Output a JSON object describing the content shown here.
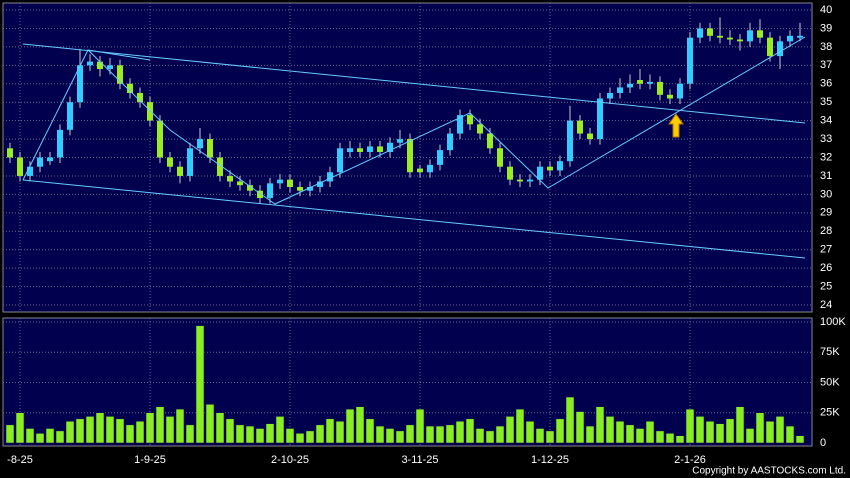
{
  "chart_data": [
    {
      "type": "candlestick",
      "up_color": "#33ccff",
      "down_color": "#99ee22",
      "wick_color": "#c8c8c8",
      "ylim": [
        24,
        40
      ],
      "yticks": [
        24,
        25,
        26,
        27,
        28,
        29,
        30,
        31,
        32,
        33,
        34,
        35,
        36,
        37,
        38,
        39,
        40
      ],
      "grid": true,
      "candles": [
        [
          32.5,
          32.8,
          31.7,
          32.0
        ],
        [
          32.0,
          32.3,
          30.7,
          31.0
        ],
        [
          31.0,
          31.8,
          30.7,
          31.5
        ],
        [
          31.5,
          32.3,
          31.2,
          32.0
        ],
        [
          31.8,
          32.3,
          31.6,
          32.0
        ],
        [
          32.0,
          33.8,
          31.7,
          33.5
        ],
        [
          33.5,
          35.3,
          33.2,
          35.0
        ],
        [
          35.0,
          37.9,
          34.7,
          37.0
        ],
        [
          37.0,
          37.6,
          36.7,
          37.2
        ],
        [
          37.2,
          37.5,
          36.4,
          36.8
        ],
        [
          36.8,
          37.4,
          36.5,
          37.0
        ],
        [
          37.0,
          37.3,
          35.7,
          36.0
        ],
        [
          36.0,
          36.3,
          35.2,
          35.5
        ],
        [
          35.5,
          35.8,
          34.7,
          35.0
        ],
        [
          35.0,
          35.3,
          33.7,
          34.0
        ],
        [
          34.0,
          34.3,
          31.7,
          32.0
        ],
        [
          32.0,
          32.3,
          31.2,
          31.5
        ],
        [
          31.5,
          31.8,
          30.6,
          31.0
        ],
        [
          31.0,
          32.8,
          30.7,
          32.5
        ],
        [
          32.5,
          33.6,
          32.2,
          33.0
        ],
        [
          33.0,
          33.3,
          31.7,
          32.0
        ],
        [
          32.0,
          32.3,
          30.7,
          31.0
        ],
        [
          31.0,
          31.3,
          30.4,
          30.7
        ],
        [
          30.7,
          31.0,
          30.2,
          30.5
        ],
        [
          30.5,
          30.8,
          29.9,
          30.2
        ],
        [
          30.2,
          30.5,
          29.5,
          29.8
        ],
        [
          29.8,
          30.9,
          29.5,
          30.6
        ],
        [
          30.6,
          31.1,
          30.3,
          30.8
        ],
        [
          30.8,
          31.1,
          30.1,
          30.4
        ],
        [
          30.4,
          30.7,
          29.9,
          30.2
        ],
        [
          30.2,
          30.7,
          29.9,
          30.4
        ],
        [
          30.4,
          31.0,
          30.1,
          30.7
        ],
        [
          30.7,
          31.5,
          30.4,
          31.2
        ],
        [
          31.2,
          32.8,
          30.9,
          32.5
        ],
        [
          32.3,
          32.9,
          32.0,
          32.5
        ],
        [
          32.5,
          32.8,
          32.0,
          32.3
        ],
        [
          32.3,
          32.9,
          32.0,
          32.6
        ],
        [
          32.6,
          32.9,
          32.0,
          32.3
        ],
        [
          32.3,
          33.1,
          32.0,
          32.8
        ],
        [
          32.8,
          33.5,
          32.5,
          33.0
        ],
        [
          33.0,
          33.3,
          30.9,
          31.2
        ],
        [
          31.4,
          31.6,
          30.9,
          31.2
        ],
        [
          31.2,
          31.9,
          30.9,
          31.6
        ],
        [
          31.6,
          32.7,
          31.3,
          32.4
        ],
        [
          32.4,
          33.6,
          32.1,
          33.3
        ],
        [
          33.3,
          34.6,
          33.0,
          34.3
        ],
        [
          34.3,
          34.6,
          33.5,
          33.8
        ],
        [
          33.8,
          34.1,
          33.0,
          33.3
        ],
        [
          33.3,
          33.6,
          32.2,
          32.5
        ],
        [
          32.5,
          32.8,
          31.2,
          31.5
        ],
        [
          31.5,
          31.8,
          30.5,
          30.8
        ],
        [
          30.8,
          31.1,
          30.4,
          30.7
        ],
        [
          30.7,
          31.1,
          30.4,
          30.8
        ],
        [
          30.8,
          31.8,
          30.5,
          31.5
        ],
        [
          31.5,
          31.8,
          31.0,
          31.3
        ],
        [
          31.3,
          32.1,
          31.0,
          31.8
        ],
        [
          31.8,
          34.8,
          31.5,
          34.0
        ],
        [
          34.0,
          34.3,
          33.0,
          33.3
        ],
        [
          33.3,
          33.6,
          32.7,
          33.0
        ],
        [
          33.0,
          35.5,
          32.7,
          35.2
        ],
        [
          35.2,
          35.8,
          34.9,
          35.5
        ],
        [
          35.5,
          36.3,
          35.2,
          35.8
        ],
        [
          35.8,
          36.5,
          35.5,
          36.0
        ],
        [
          36.2,
          36.8,
          35.7,
          36.0
        ],
        [
          36.0,
          36.5,
          35.7,
          36.1
        ],
        [
          36.1,
          36.4,
          35.1,
          35.4
        ],
        [
          35.4,
          35.7,
          34.9,
          35.2
        ],
        [
          35.2,
          36.3,
          34.9,
          36.0
        ],
        [
          36.0,
          38.8,
          35.7,
          38.5
        ],
        [
          38.5,
          39.3,
          38.2,
          39.0
        ],
        [
          39.0,
          39.3,
          38.3,
          38.6
        ],
        [
          38.6,
          39.6,
          38.2,
          38.5
        ],
        [
          38.5,
          38.9,
          38.1,
          38.4
        ],
        [
          38.4,
          38.7,
          37.8,
          38.3
        ],
        [
          38.3,
          39.3,
          38.0,
          38.9
        ],
        [
          38.9,
          39.5,
          38.2,
          38.5
        ],
        [
          38.5,
          38.8,
          37.2,
          37.5
        ],
        [
          37.5,
          38.6,
          36.8,
          38.3
        ],
        [
          38.3,
          38.9,
          38.0,
          38.6
        ],
        [
          38.5,
          39.3,
          38.3,
          38.6
        ]
      ]
    },
    {
      "type": "bar",
      "color": "#88ee22",
      "categories": [
        null,
        "-8-25",
        null,
        null,
        null,
        null,
        null,
        null,
        null,
        null,
        null,
        null,
        null,
        null,
        "1-9-25",
        null,
        null,
        null,
        null,
        null,
        null,
        null,
        null,
        null,
        null,
        null,
        null,
        null,
        "2-10-25",
        null,
        null,
        null,
        null,
        null,
        null,
        null,
        null,
        null,
        null,
        null,
        null,
        "3-11-25",
        null,
        null,
        null,
        null,
        null,
        null,
        null,
        null,
        null,
        null,
        null,
        null,
        "1-12-25",
        null,
        null,
        null,
        null,
        null,
        null,
        null,
        null,
        null,
        null,
        null,
        null,
        null,
        "2-1-26",
        null,
        null,
        null,
        null,
        null,
        null,
        null,
        null,
        null,
        null,
        null
      ],
      "ylim": [
        0,
        100000
      ],
      "yticks": [
        0,
        {
          "value": 25000,
          "label": "25K"
        },
        {
          "value": 50000,
          "label": "50K"
        },
        {
          "value": 75000,
          "label": "75K"
        },
        {
          "value": 100000,
          "label": "100K"
        }
      ],
      "grid": true,
      "values": [
        15000,
        25000,
        12000,
        8000,
        12000,
        10000,
        18000,
        20000,
        22000,
        25000,
        22000,
        20000,
        15000,
        18000,
        25000,
        30000,
        22000,
        28000,
        15000,
        97000,
        32000,
        25000,
        20000,
        15000,
        14000,
        12000,
        16000,
        22000,
        12000,
        8000,
        10000,
        15000,
        20000,
        18000,
        28000,
        30000,
        20000,
        14000,
        12000,
        10000,
        15000,
        28000,
        14000,
        14000,
        15000,
        18000,
        20000,
        12000,
        10000,
        14000,
        22000,
        28000,
        18000,
        12000,
        10000,
        20000,
        38000,
        26000,
        14000,
        30000,
        22000,
        18000,
        15000,
        12000,
        18000,
        10000,
        8000,
        6000,
        28000,
        22000,
        18000,
        16000,
        20000,
        30000,
        12000,
        25000,
        18000,
        22000,
        14000,
        6000
      ]
    }
  ],
  "credit": "Copyright by AASTOCKS.com Ltd."
}
